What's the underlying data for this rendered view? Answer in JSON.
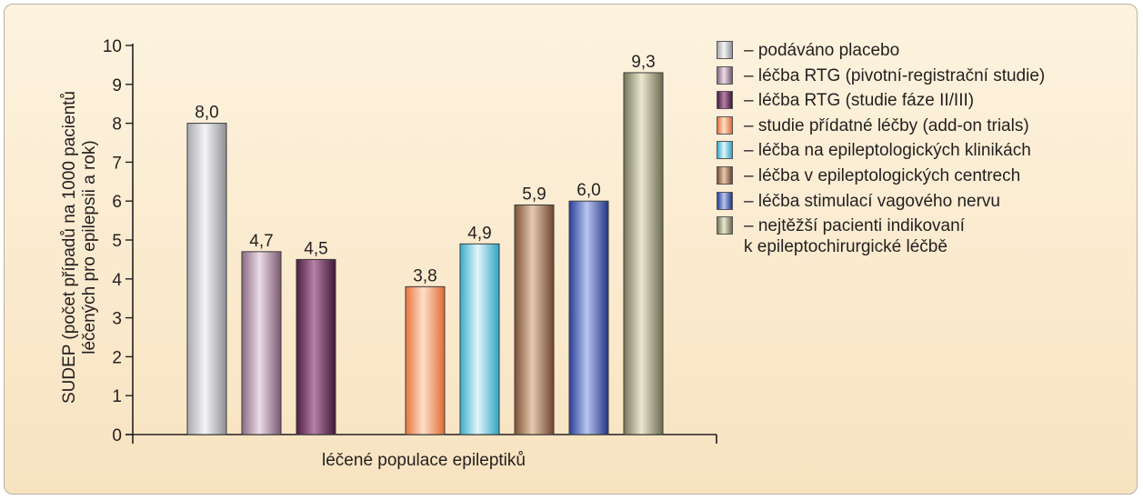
{
  "chart_data": {
    "type": "bar",
    "ylabel_line1": "SUDEP (počet případů na 1000 pacientů",
    "ylabel_line2": "léčených pro epilepsii a rok)",
    "xlabel": "léčené populace epileptiků",
    "ylim": [
      0,
      10
    ],
    "yticks": [
      0,
      1,
      2,
      3,
      4,
      5,
      6,
      7,
      8,
      9,
      10
    ],
    "grid": false,
    "legend_position": "right",
    "series": [
      {
        "name": "podáváno placebo",
        "value": 8.0,
        "label": "8,0",
        "colors": [
          "#a9a9b0",
          "#f4f4f6",
          "#8f9097"
        ]
      },
      {
        "name": "léčba RTG (pivotní-registrační studie)",
        "value": 4.7,
        "label": "4,7",
        "colors": [
          "#8b6a82",
          "#ecdde6",
          "#7a5872"
        ]
      },
      {
        "name": "léčba RTG (studie fáze II/III)",
        "value": 4.5,
        "label": "4,5",
        "colors": [
          "#4a1f40",
          "#b77fa7",
          "#3e1836"
        ]
      },
      {
        "name": "studie přídatné léčby (add-on trials)",
        "value": 3.8,
        "label": "3,8",
        "colors": [
          "#e8743e",
          "#fde0c8",
          "#e06a34"
        ]
      },
      {
        "name": "léčba na epileptologických klinikách",
        "value": 4.9,
        "label": "4,9",
        "colors": [
          "#39aecb",
          "#e2f5fa",
          "#2fa4c2"
        ]
      },
      {
        "name": "léčba v epileptologických centrech",
        "value": 5.9,
        "label": "5,9",
        "colors": [
          "#7d5136",
          "#e6c9b0",
          "#6f4630"
        ]
      },
      {
        "name": "léčba stimulací vagového nervu",
        "value": 6.0,
        "label": "6,0",
        "colors": [
          "#2b3f97",
          "#b9c6ef",
          "#233582"
        ]
      },
      {
        "name": "nejtěžší pacienti indikovaní k epileptochirurgické léčbě",
        "name_lines": [
          "nejtěžší pacienti indikovaní",
          "k epileptochirurgické léčbě"
        ],
        "value": 9.3,
        "label": "9,3",
        "colors": [
          "#77765a",
          "#e9e8cf",
          "#6c6b50"
        ]
      }
    ]
  }
}
